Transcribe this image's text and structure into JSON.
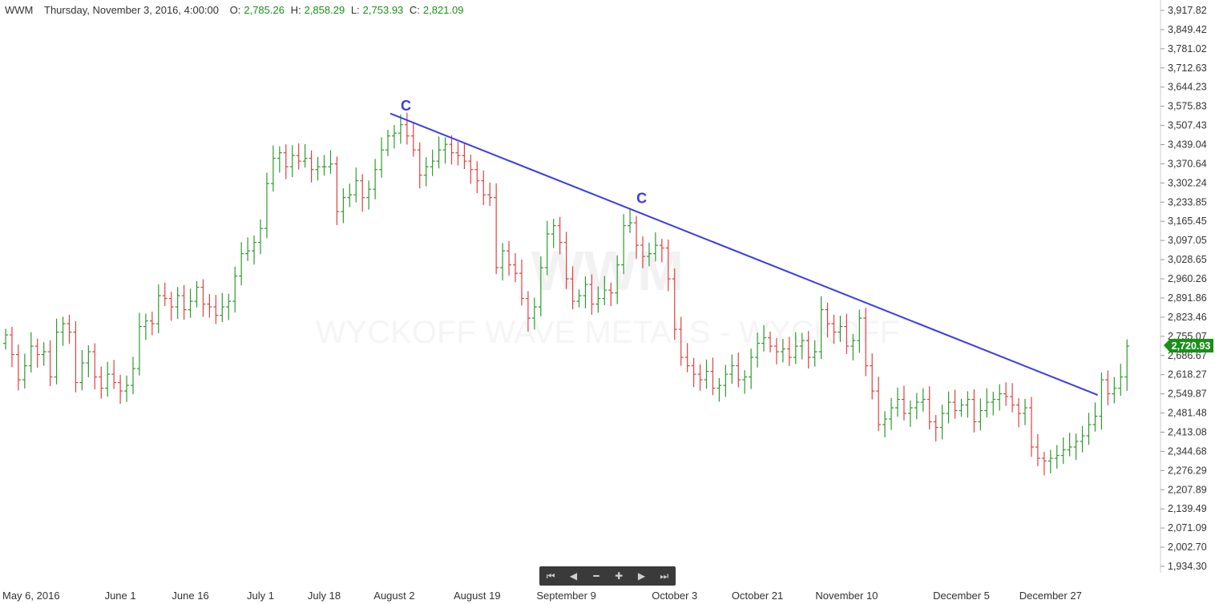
{
  "header": {
    "symbol": "WWM",
    "datetime": "Thursday, November 3, 2016, 4:00:00",
    "o_label": "O:",
    "o_value": "2,785.26",
    "h_label": "H:",
    "h_value": "2,858.29",
    "l_label": "L:",
    "l_value": "2,753.93",
    "c_label": "C:",
    "c_value": "2,821.09"
  },
  "watermark": {
    "symbol": "WWM",
    "name": "WYCKOFF WAVE METALS - WYCKOFF"
  },
  "last_price_badge": "2,720.93",
  "navigation": {
    "first_icon": "skip-first-icon",
    "prev_icon": "step-back-icon",
    "zoom_out_icon": "zoom-out-icon",
    "zoom_in_icon": "zoom-in-icon",
    "next_icon": "step-forward-icon",
    "last_icon": "skip-last-icon"
  },
  "colors": {
    "up": "#2e9a2e",
    "down": "#e04040",
    "trendline": "#3a3af0",
    "badge": "#1a8f1a"
  },
  "chart_data": {
    "type": "ohlc-bar",
    "ylim": [
      1900,
      3940
    ],
    "y_ticks": [
      "3,917.82",
      "3,849.42",
      "3,781.02",
      "3,712.63",
      "3,644.23",
      "3,575.83",
      "3,507.43",
      "3,439.04",
      "3,370.64",
      "3,302.24",
      "3,233.85",
      "3,165.45",
      "3,097.05",
      "3,028.65",
      "2,960.26",
      "2,891.86",
      "2,823.46",
      "2,755.07",
      "2,686.67",
      "2,618.27",
      "2,549.87",
      "2,481.48",
      "2,413.08",
      "2,344.68",
      "2,276.29",
      "2,207.89",
      "2,139.49",
      "2,071.09",
      "2,002.70",
      "1,934.30"
    ],
    "x_tick_labels": [
      {
        "label": "May 6, 2016",
        "index": 0
      },
      {
        "label": "June 1",
        "index": 18
      },
      {
        "label": "June 16",
        "index": 29
      },
      {
        "label": "July 1",
        "index": 40
      },
      {
        "label": "July 18",
        "index": 50
      },
      {
        "label": "August 2",
        "index": 61
      },
      {
        "label": "August 19",
        "index": 74
      },
      {
        "label": "September 9",
        "index": 88
      },
      {
        "label": "October 3",
        "index": 105
      },
      {
        "label": "October 21",
        "index": 118
      },
      {
        "label": "November 10",
        "index": 132
      },
      {
        "label": "December 5",
        "index": 150
      },
      {
        "label": "December 27",
        "index": 164
      }
    ],
    "closes": [
      2760,
      2690,
      2600,
      2650,
      2720,
      2690,
      2700,
      2610,
      2770,
      2800,
      2770,
      2590,
      2660,
      2700,
      2610,
      2570,
      2620,
      2590,
      2560,
      2580,
      2640,
      2790,
      2810,
      2800,
      2900,
      2890,
      2860,
      2900,
      2850,
      2880,
      2930,
      2870,
      2860,
      2830,
      2860,
      2880,
      2970,
      3050,
      3060,
      3090,
      3140,
      3300,
      3390,
      3410,
      3360,
      3400,
      3380,
      3390,
      3350,
      3360,
      3360,
      3370,
      3200,
      3250,
      3260,
      3310,
      3250,
      3280,
      3350,
      3420,
      3470,
      3480,
      3510,
      3470,
      3420,
      3330,
      3360,
      3380,
      3420,
      3440,
      3410,
      3400,
      3380,
      3350,
      3310,
      3260,
      3250,
      3000,
      3060,
      3010,
      2980,
      2890,
      2820,
      2860,
      3000,
      3120,
      3150,
      3090,
      2960,
      2880,
      2900,
      2940,
      2870,
      2890,
      2920,
      2910,
      3010,
      3150,
      3160,
      3080,
      3040,
      3050,
      3080,
      3070,
      2960,
      2780,
      2680,
      2650,
      2620,
      2600,
      2630,
      2570,
      2580,
      2620,
      2650,
      2600,
      2610,
      2680,
      2730,
      2750,
      2720,
      2700,
      2710,
      2680,
      2720,
      2740,
      2680,
      2700,
      2850,
      2800,
      2770,
      2790,
      2720,
      2740,
      2820,
      2650,
      2560,
      2440,
      2460,
      2500,
      2530,
      2480,
      2500,
      2520,
      2530,
      2450,
      2430,
      2480,
      2520,
      2490,
      2510,
      2530,
      2450,
      2490,
      2520,
      2530,
      2550,
      2540,
      2510,
      2480,
      2500,
      2360,
      2320,
      2310,
      2320,
      2330,
      2350,
      2360,
      2380,
      2400,
      2440,
      2470,
      2600,
      2550,
      2570,
      2610,
      2720
    ],
    "trendline": {
      "start_index": 61,
      "start_value": 3550,
      "end_index": 168,
      "end_value": 2560
    },
    "annotations": [
      {
        "text": "C",
        "index": 61,
        "value": 3600
      },
      {
        "text": "C",
        "index": 98,
        "value": 3270
      }
    ]
  }
}
